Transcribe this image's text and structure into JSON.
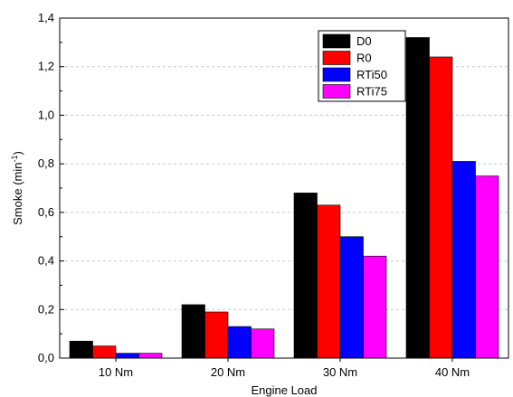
{
  "chart_data": {
    "type": "bar",
    "categories": [
      "10 Nm",
      "20 Nm",
      "30 Nm",
      "40 Nm"
    ],
    "series": [
      {
        "name": "D0",
        "color": "#000000",
        "values": [
          0.07,
          0.22,
          0.68,
          1.32
        ]
      },
      {
        "name": "R0",
        "color": "#ff0000",
        "values": [
          0.05,
          0.19,
          0.63,
          1.24
        ]
      },
      {
        "name": "RTi50",
        "color": "#0000ff",
        "values": [
          0.02,
          0.13,
          0.5,
          0.81
        ]
      },
      {
        "name": "RTi75",
        "color": "#ff00ff",
        "values": [
          0.02,
          0.12,
          0.42,
          0.75
        ]
      }
    ],
    "title": "",
    "xlabel": "Engine Load",
    "ylabel": "Smoke (min",
    "ylabel_superscript": "-1",
    "ylabel_suffix": ")",
    "ylim": [
      0,
      1.4
    ],
    "yticks": [
      "0,0",
      "0,2",
      "0,4",
      "0,6",
      "0,8",
      "1,0",
      "1,2",
      "1,4"
    ],
    "grid": "horizontal dashed",
    "legend_position": "top-right"
  }
}
